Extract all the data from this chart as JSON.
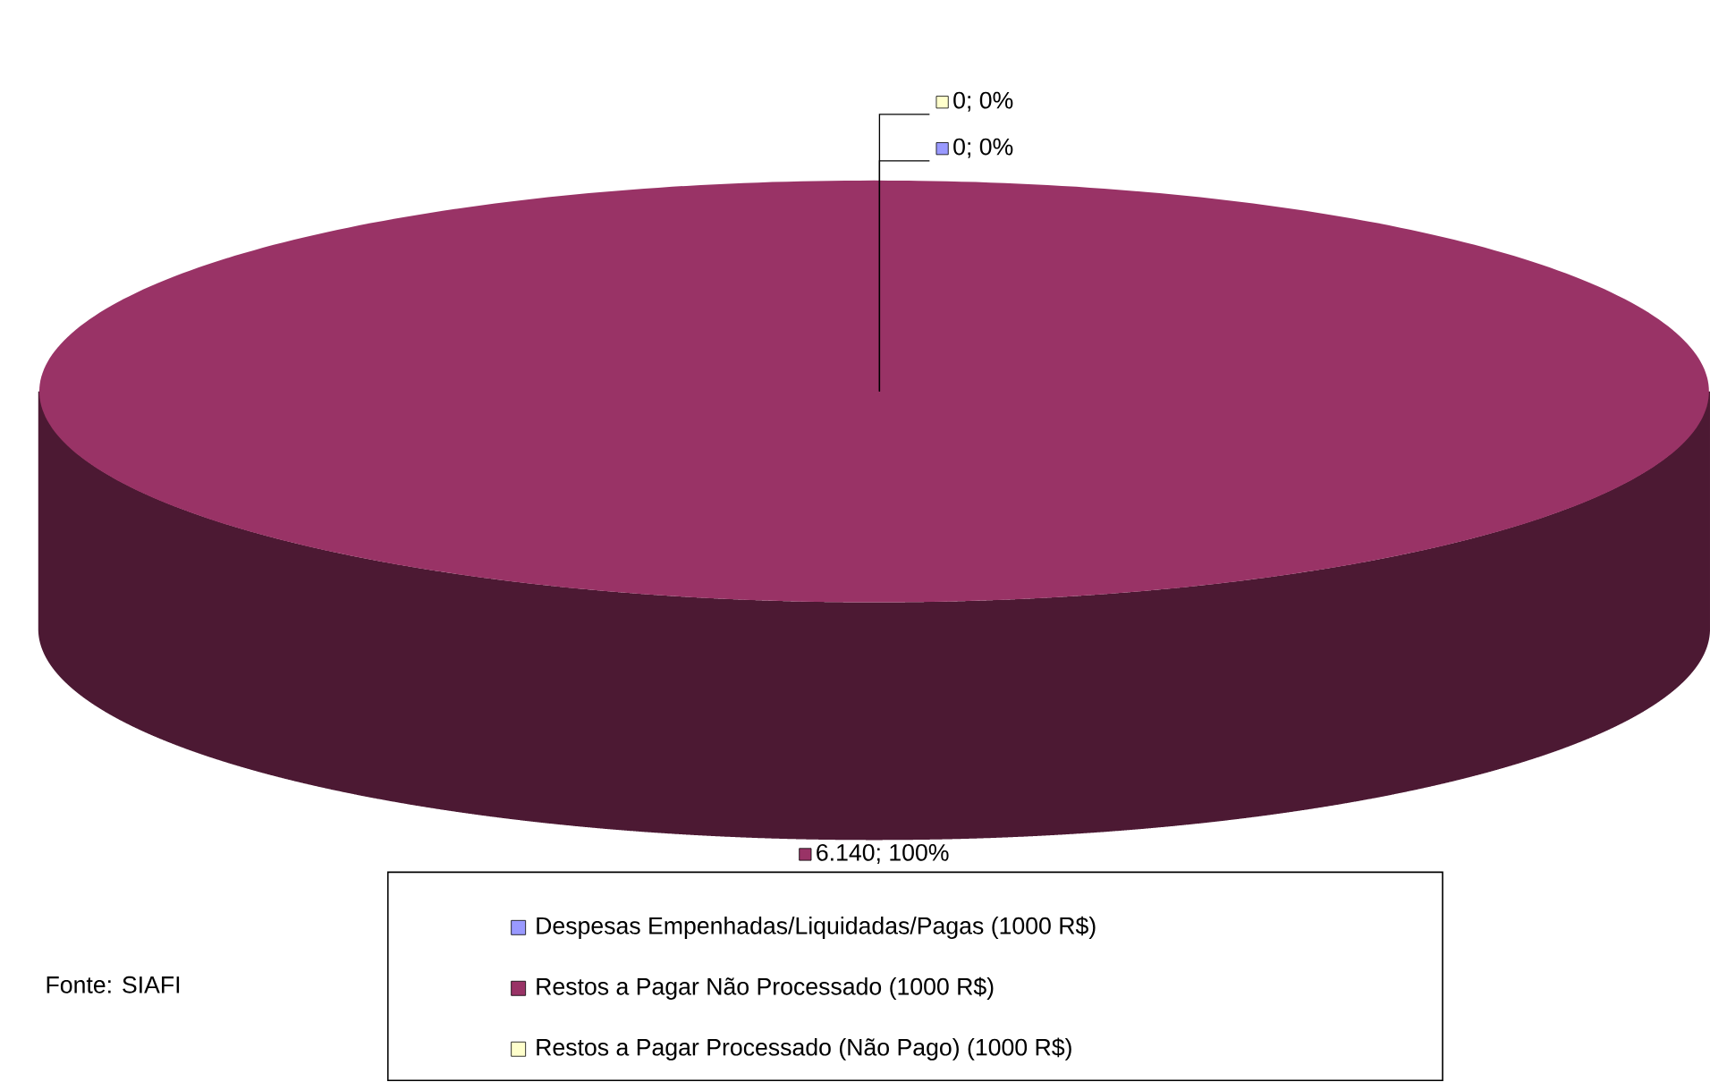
{
  "chart_data": {
    "type": "pie",
    "categories": [
      "Despesas Empenhadas/Liquidadas/Pagas (1000 R$)",
      "Restos a Pagar Não Processado (1000 R$)",
      "Restos a Pagar Processado (Não Pago) (1000 R$)"
    ],
    "values": [
      0,
      6140,
      0
    ],
    "colors": [
      "#9999ff",
      "#993366",
      "#ffffcc"
    ],
    "value_labels": [
      "0; 0%",
      "6.140; 100%",
      "0; 0%"
    ],
    "legend": "bottom",
    "annotations": [
      "Fonte: SIAFI"
    ]
  }
}
